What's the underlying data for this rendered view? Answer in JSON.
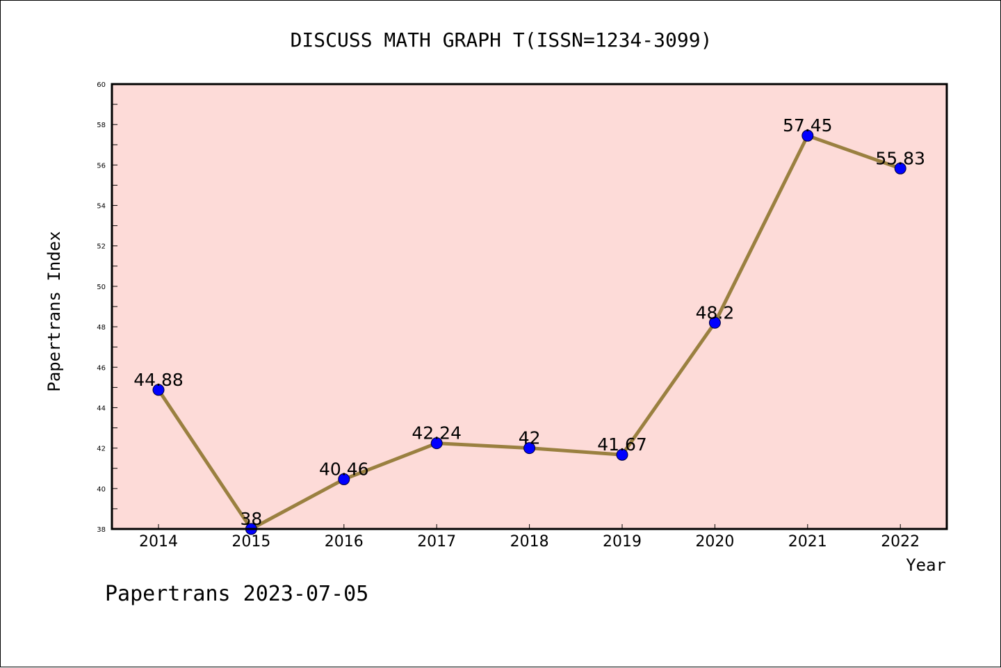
{
  "chart_data": {
    "type": "line",
    "title": "DISCUSS MATH GRAPH T(ISSN=1234-3099)",
    "xlabel": "Year",
    "ylabel": "Papertrans Index",
    "categories": [
      "2014",
      "2015",
      "2016",
      "2017",
      "2018",
      "2019",
      "2020",
      "2021",
      "2022"
    ],
    "series": [
      {
        "values": [
          44.88,
          38,
          40.46,
          42.24,
          42,
          41.67,
          48.2,
          57.45,
          55.83
        ],
        "labels": [
          "44.88",
          "38",
          "40.46",
          "42.24",
          "42",
          "41.67",
          "48.2",
          "57.45",
          "55.83"
        ]
      }
    ],
    "ylim": [
      38,
      60
    ],
    "yticks": [
      "38",
      "40",
      "42",
      "44",
      "46",
      "48",
      "50",
      "52",
      "54",
      "56",
      "58",
      "60"
    ],
    "grid": false,
    "colors": {
      "plot_background": "#fddbd8",
      "line": "#9a8040",
      "marker": "#0000ff",
      "axes": "#000000"
    }
  },
  "footer": "Papertrans 2023-07-05"
}
